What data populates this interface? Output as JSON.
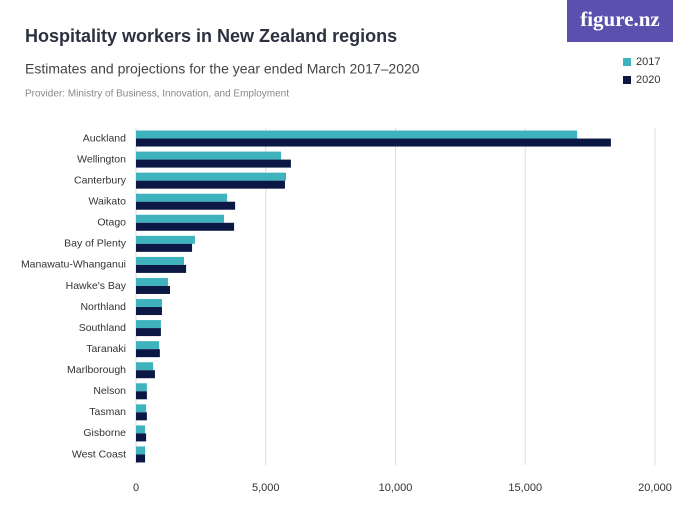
{
  "logo": "figure.nz",
  "chart_data": {
    "type": "bar",
    "orientation": "horizontal",
    "title": "Hospitality workers in New Zealand regions",
    "subtitle": "Estimates and projections for the year ended March 2017–2020",
    "source": "Provider: Ministry of Business, Innovation, and Employment",
    "categories": [
      "Auckland",
      "Wellington",
      "Canterbury",
      "Waikato",
      "Otago",
      "Bay of Plenty",
      "Manawatu-Whanganui",
      "Hawke's Bay",
      "Northland",
      "Southland",
      "Taranaki",
      "Marlborough",
      "Nelson",
      "Tasman",
      "Gisborne",
      "West Coast"
    ],
    "series": [
      {
        "name": "2017",
        "color": "#3fb3bd",
        "values": [
          17000,
          5590,
          5780,
          3510,
          3390,
          2270,
          1850,
          1230,
          1000,
          960,
          890,
          660,
          420,
          390,
          350,
          350
        ]
      },
      {
        "name": "2020",
        "color": "#0c1844",
        "values": [
          18300,
          5970,
          5740,
          3820,
          3780,
          2160,
          1930,
          1310,
          1000,
          960,
          920,
          730,
          420,
          420,
          390,
          350
        ]
      }
    ],
    "xlim": [
      0,
      20000
    ],
    "xticks": [
      0,
      {
        "value": 5000,
        "label": "5,000"
      },
      {
        "value": 10000,
        "label": "10,000"
      },
      {
        "value": 15000,
        "label": "15,000"
      },
      {
        "value": 20000,
        "label": "20,000"
      }
    ],
    "grid": true,
    "legend": "top-right"
  }
}
